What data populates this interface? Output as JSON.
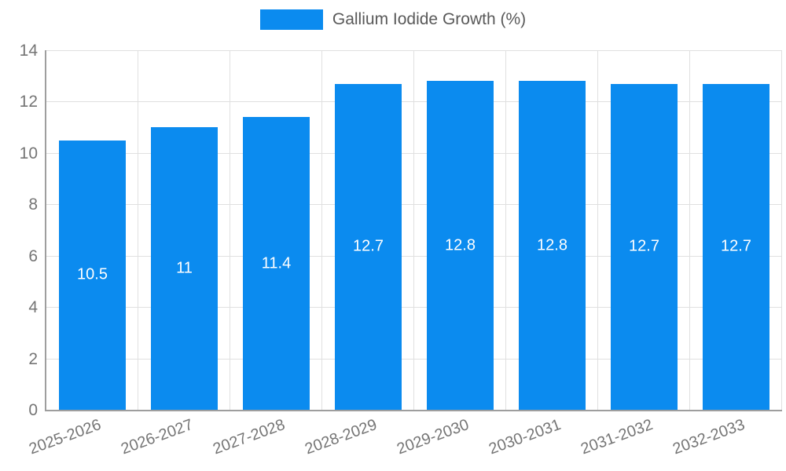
{
  "chart_data": {
    "type": "bar",
    "title": "Gallium Iodide Growth (%)",
    "legend": {
      "position": "top",
      "entries": [
        "Gallium Iodide Growth (%)"
      ]
    },
    "categories": [
      "2025-2026",
      "2026-2027",
      "2027-2028",
      "2028-2029",
      "2029-2030",
      "2030-2031",
      "2031-2032",
      "2032-2033"
    ],
    "values": [
      10.5,
      11,
      11.4,
      12.7,
      12.8,
      12.8,
      12.7,
      12.7
    ],
    "value_labels": [
      "10.5",
      "11",
      "11.4",
      "12.7",
      "12.8",
      "12.8",
      "12.7",
      "12.7"
    ],
    "xlabel": "",
    "ylabel": "",
    "ylim": [
      0,
      14
    ],
    "yticks": [
      0,
      2,
      4,
      6,
      8,
      10,
      12,
      14
    ],
    "grid": true,
    "colors": {
      "bar": "#0b8bef",
      "bar_label": "#ffffff",
      "axis_line": "#9e9e9e",
      "gridline": "#e0e0e0",
      "tick_label": "#757575",
      "legend_text": "#595959"
    }
  }
}
